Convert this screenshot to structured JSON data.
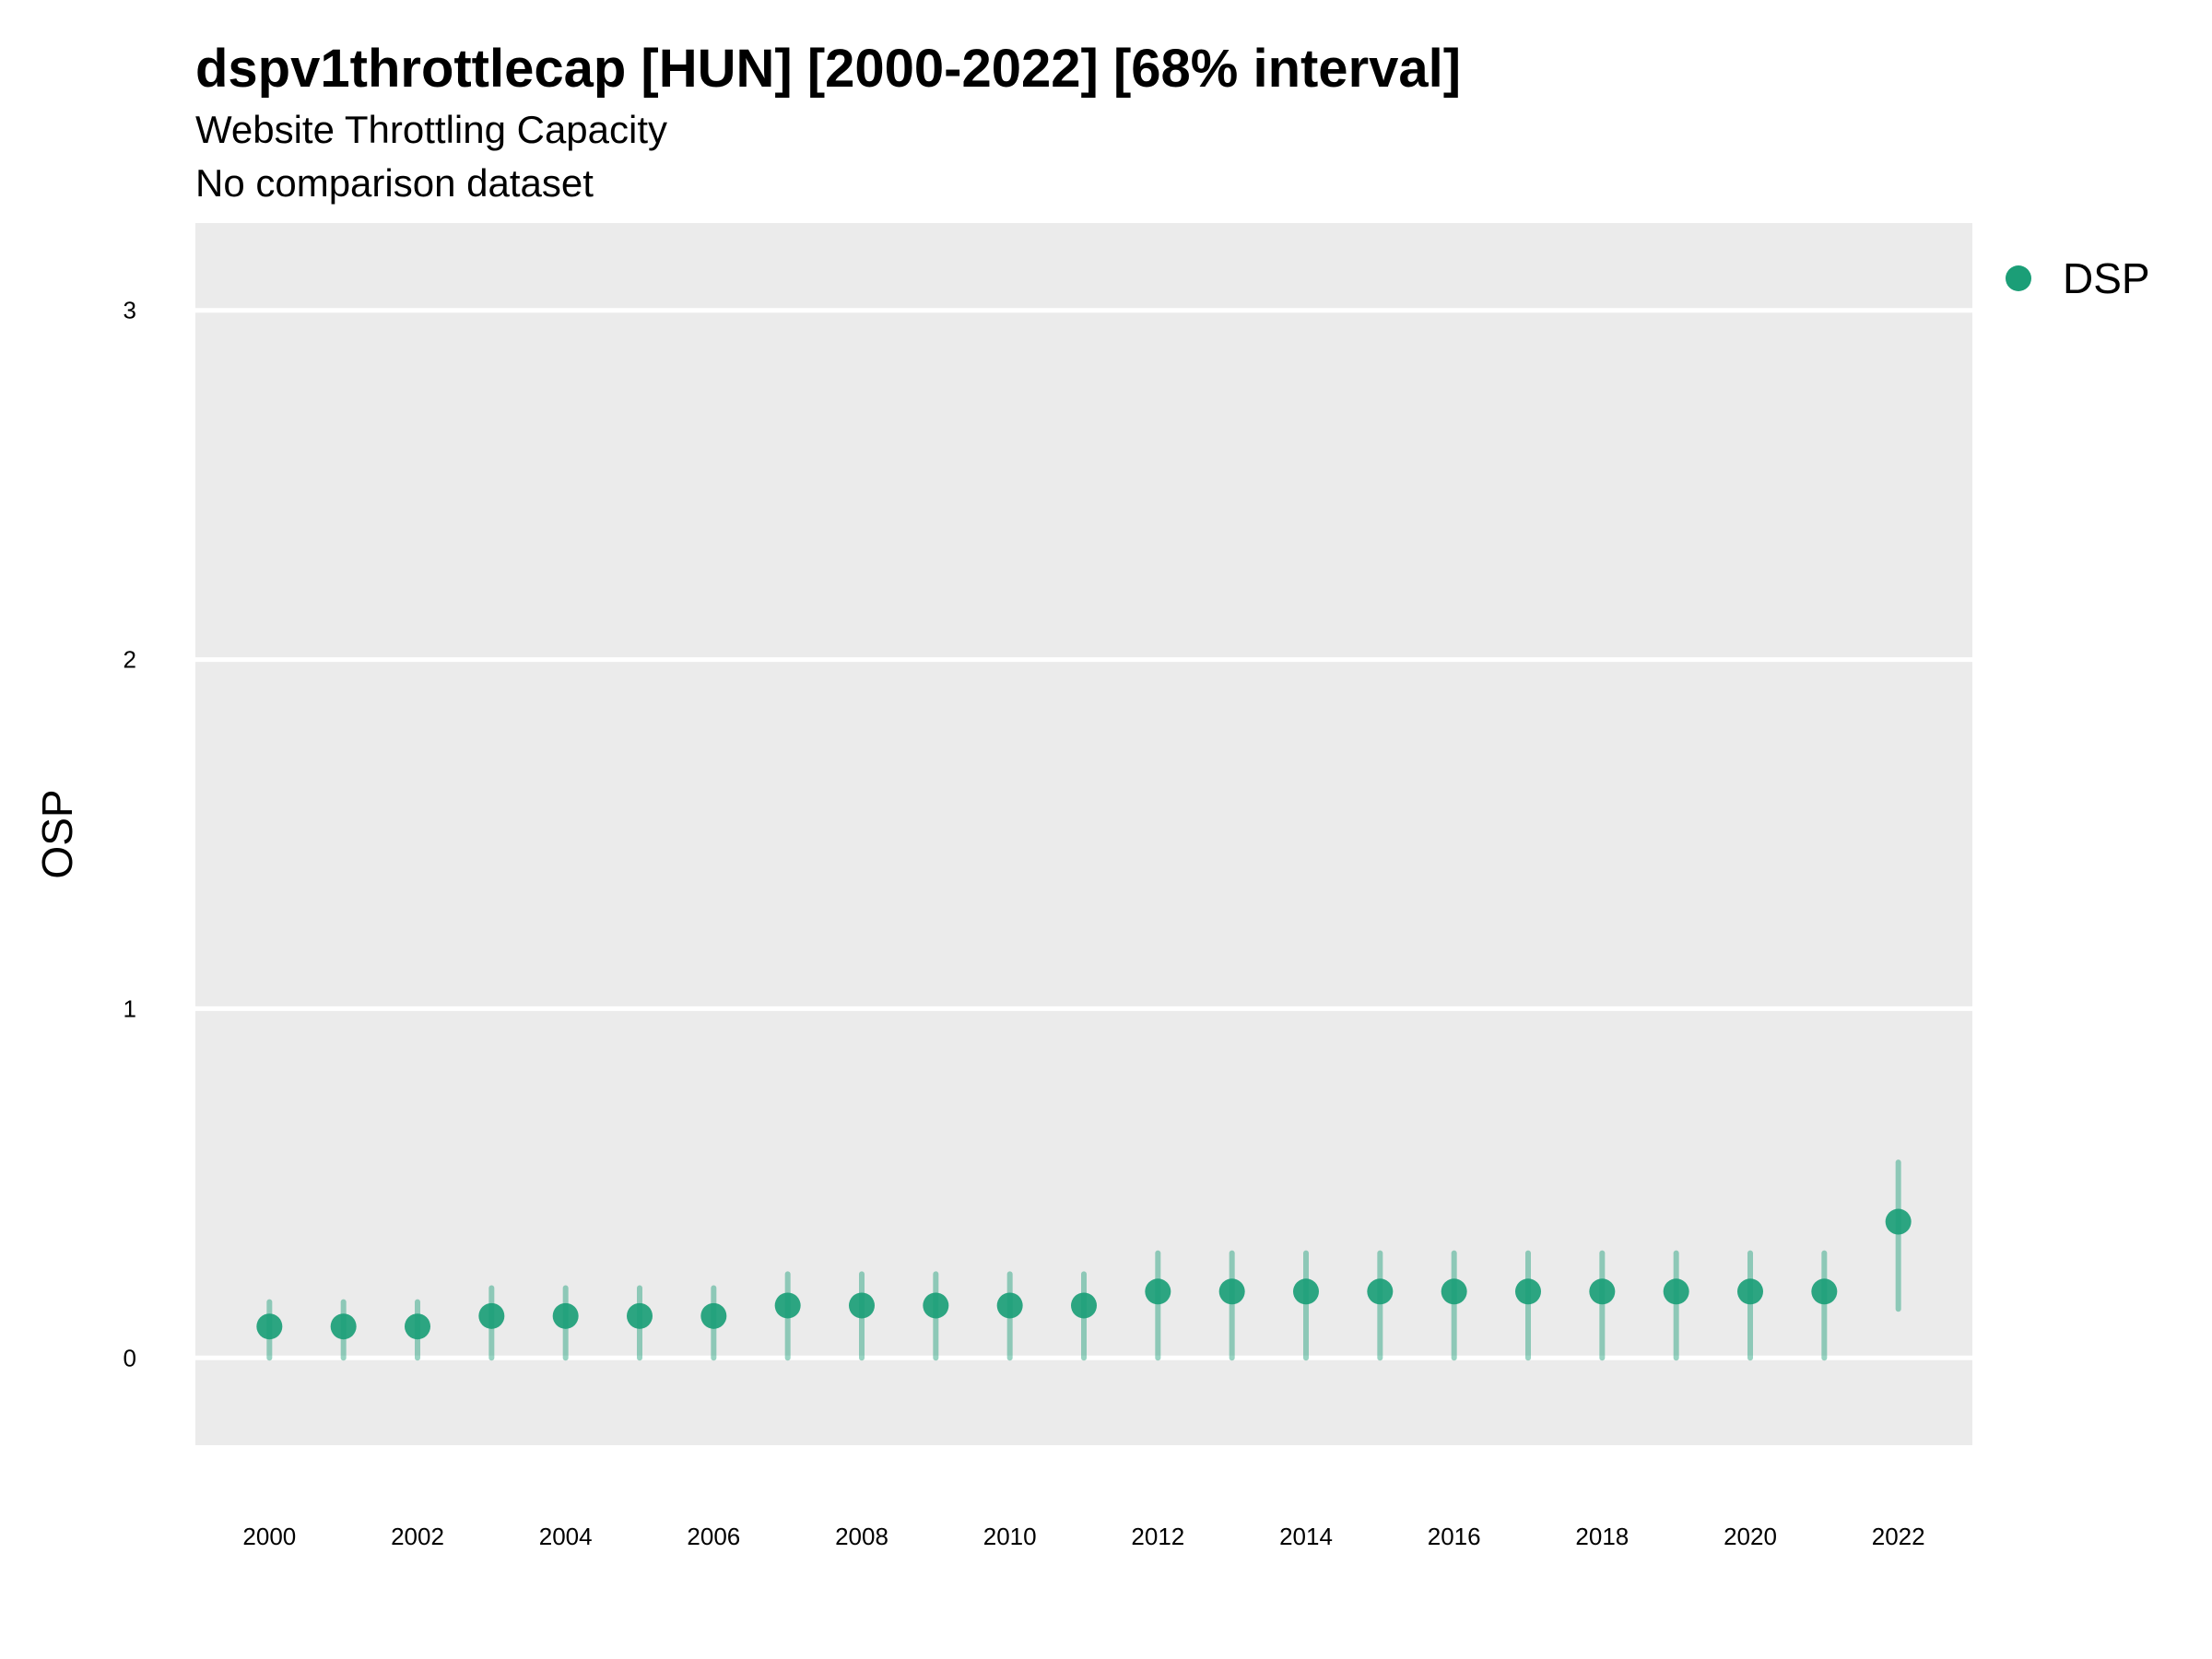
{
  "title": "dspv1throttlecap [HUN] [2000-2022] [68% interval]",
  "subtitle": "Website Throttling Capacity",
  "subtitle2": "No comparison dataset",
  "colors": {
    "panel": "#ebebeb",
    "grid": "#ffffff",
    "point": "#1b9e77"
  },
  "chart_data": {
    "type": "scatter",
    "ylabel": "OSP",
    "xlabel": "",
    "ylim": [
      -0.25,
      3.25
    ],
    "y_ticks": [
      0,
      1,
      2,
      3
    ],
    "x_ticks": [
      2000,
      2002,
      2004,
      2006,
      2008,
      2010,
      2012,
      2014,
      2016,
      2018,
      2020,
      2022
    ],
    "legend_position": "top-right",
    "series": [
      {
        "name": "DSP",
        "x": [
          2000,
          2001,
          2002,
          2003,
          2004,
          2005,
          2006,
          2007,
          2008,
          2009,
          2010,
          2011,
          2012,
          2013,
          2014,
          2015,
          2016,
          2017,
          2018,
          2019,
          2020,
          2021,
          2022
        ],
        "y": [
          0.09,
          0.09,
          0.09,
          0.12,
          0.12,
          0.12,
          0.12,
          0.15,
          0.15,
          0.15,
          0.15,
          0.15,
          0.19,
          0.19,
          0.19,
          0.19,
          0.19,
          0.19,
          0.19,
          0.19,
          0.19,
          0.19,
          0.39
        ],
        "lower": [
          0.0,
          0.0,
          0.0,
          0.0,
          0.0,
          0.0,
          0.0,
          0.0,
          0.0,
          0.0,
          0.0,
          0.0,
          0.0,
          0.0,
          0.0,
          0.0,
          0.0,
          0.0,
          0.0,
          0.0,
          0.0,
          0.0,
          0.14
        ],
        "upper": [
          0.16,
          0.16,
          0.16,
          0.2,
          0.2,
          0.2,
          0.2,
          0.24,
          0.24,
          0.24,
          0.24,
          0.24,
          0.3,
          0.3,
          0.3,
          0.3,
          0.3,
          0.3,
          0.3,
          0.3,
          0.3,
          0.3,
          0.56
        ]
      }
    ]
  }
}
